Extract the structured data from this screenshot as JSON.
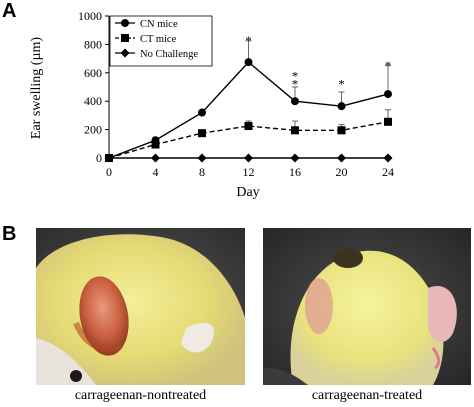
{
  "panel_labels": {
    "a": "A",
    "b": "B"
  },
  "chart_data": {
    "type": "line",
    "x": [
      0,
      4,
      8,
      12,
      16,
      20,
      24
    ],
    "xlabel": "Day",
    "ylabel": "Ear swelling (µm)",
    "xlim": [
      0,
      24
    ],
    "ylim": [
      0,
      1000
    ],
    "xticks": [
      "0",
      "4",
      "8",
      "12",
      "16",
      "20",
      "24"
    ],
    "yticks": [
      "0",
      "200",
      "400",
      "600",
      "800",
      "1000"
    ],
    "grid": false,
    "legend_position": "top-left",
    "series": [
      {
        "name": "CN mice",
        "marker": "circle",
        "line": "solid",
        "values": [
          0,
          125,
          320,
          675,
          400,
          365,
          450
        ],
        "error_up": [
          0,
          0,
          0,
          150,
          100,
          100,
          200
        ]
      },
      {
        "name": "CT mice",
        "marker": "square",
        "line": "dashed",
        "values": [
          0,
          95,
          175,
          225,
          195,
          195,
          255
        ],
        "error_up": [
          0,
          0,
          0,
          35,
          65,
          40,
          85
        ]
      },
      {
        "name": "No Challenge",
        "marker": "diamond",
        "line": "solid",
        "values": [
          0,
          0,
          0,
          0,
          0,
          0,
          0
        ],
        "error_up": [
          0,
          0,
          0,
          0,
          0,
          0,
          0
        ]
      }
    ],
    "significance": [
      {
        "x": 12,
        "label": "*",
        "y": 830
      },
      {
        "x": 16,
        "label": "*",
        "y": 580
      },
      {
        "x": 16,
        "label": "*",
        "y": 525
      },
      {
        "x": 20,
        "label": "*",
        "y": 525
      },
      {
        "x": 24,
        "label": "*",
        "y": 655
      }
    ]
  },
  "photos": [
    {
      "caption": "carrageenan-nontreated"
    },
    {
      "caption": "carrageenan-treated"
    }
  ]
}
